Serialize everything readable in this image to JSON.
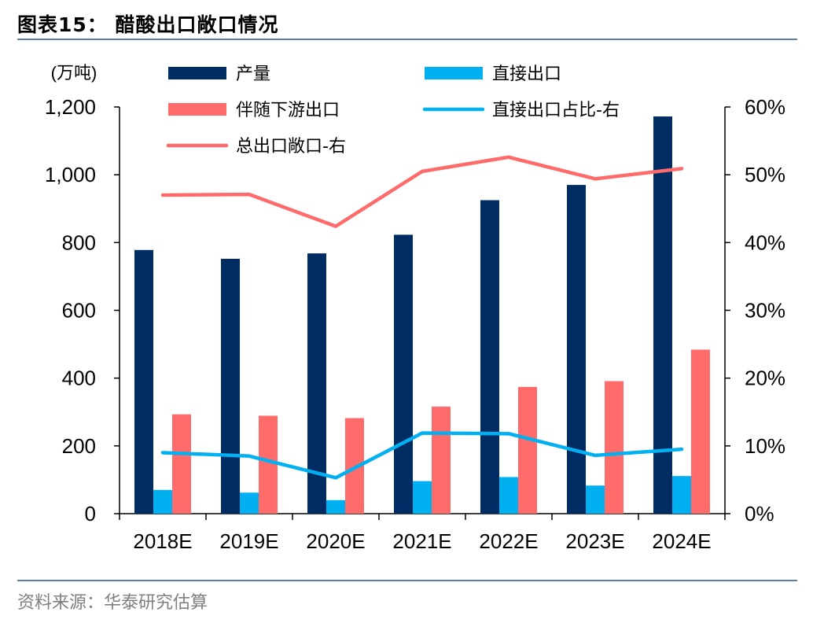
{
  "page": {
    "title": "图表15：  醋酸出口敞口情况",
    "source": "资料来源：华泰研究估算"
  },
  "colors": {
    "production": "#002c64",
    "direct_export": "#00b0f0",
    "downstream_export": "#ff6b6b",
    "direct_ratio_line": "#00b0f0",
    "total_ratio_line": "#ff6b6b",
    "rule": "#5b7fb3"
  },
  "chart_data": {
    "type": "bar",
    "title": "醋酸出口敞口情况",
    "categories": [
      "2018E",
      "2019E",
      "2020E",
      "2021E",
      "2022E",
      "2023E",
      "2024E"
    ],
    "series": [
      {
        "name": "产量",
        "type": "bar",
        "axis": "left",
        "values": [
          778,
          752,
          768,
          823,
          925,
          970,
          1172
        ]
      },
      {
        "name": "直接出口",
        "type": "bar",
        "axis": "left",
        "values": [
          70,
          62,
          40,
          96,
          108,
          83,
          111
        ]
      },
      {
        "name": "伴随下游出口",
        "type": "bar",
        "axis": "left",
        "values": [
          293,
          289,
          282,
          316,
          374,
          391,
          484
        ]
      },
      {
        "name": "直接出口占比-右",
        "type": "line",
        "axis": "right",
        "values": [
          0.09,
          0.085,
          0.053,
          0.119,
          0.118,
          0.086,
          0.095
        ]
      },
      {
        "name": "总出口敞口-右",
        "type": "line",
        "axis": "right",
        "values": [
          0.47,
          0.471,
          0.424,
          0.505,
          0.526,
          0.494,
          0.509
        ]
      }
    ],
    "left_axis": {
      "unit_label": "(万吨)",
      "ylim": [
        0,
        1200
      ],
      "ticks": [
        0,
        200,
        400,
        600,
        800,
        1000,
        1200
      ],
      "tick_labels": [
        "0",
        "200",
        "400",
        "600",
        "800",
        "1,000",
        "1,200"
      ]
    },
    "right_axis": {
      "ylim": [
        0,
        0.6
      ],
      "ticks": [
        0,
        0.1,
        0.2,
        0.3,
        0.4,
        0.5,
        0.6
      ],
      "tick_labels": [
        "0%",
        "10%",
        "20%",
        "30%",
        "40%",
        "50%",
        "60%"
      ]
    },
    "grid": false,
    "legend_position": "top"
  }
}
